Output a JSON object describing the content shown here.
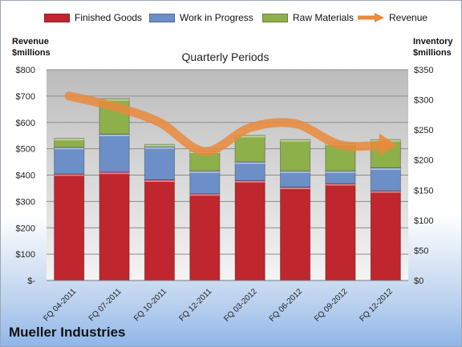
{
  "chart_data": {
    "type": "bar",
    "title": "Quarterly Periods",
    "company": "Mueller Industries",
    "categories": [
      "FQ 04-2011",
      "FQ 07-2011",
      "FQ 10-2011",
      "FQ 12-2011",
      "FQ 03-2012",
      "FQ 06-2012",
      "FQ 09-2012",
      "FQ 12-2012"
    ],
    "stacked": true,
    "left_axis": {
      "label_lines": [
        "Revenue",
        "$millions"
      ],
      "ylim": [
        0,
        800
      ],
      "ticks": [
        "$-",
        "$100",
        "$200",
        "$300",
        "$400",
        "$500",
        "$600",
        "$700",
        "$800"
      ]
    },
    "right_axis": {
      "label_lines": [
        "Inventory",
        "$millions"
      ],
      "ylim": [
        0,
        350
      ],
      "ticks": [
        "$0",
        "$50",
        "$100",
        "$150",
        "$200",
        "$250",
        "$300",
        "$350"
      ]
    },
    "series": [
      {
        "name": "Finished Goods",
        "axis": "right",
        "color": "#c0262d",
        "values": [
          177,
          180,
          167,
          144,
          166,
          155,
          161,
          149
        ]
      },
      {
        "name": "Work in Progress",
        "axis": "right",
        "color": "#6d8fc8",
        "values": [
          44,
          63,
          55,
          38,
          31,
          27,
          21,
          38
        ]
      },
      {
        "name": "Raw Materials",
        "axis": "right",
        "color": "#8db04b",
        "values": [
          15,
          59,
          4,
          33,
          44,
          52,
          46,
          47
        ]
      }
    ],
    "line_series": {
      "name": "Revenue",
      "axis": "left",
      "color": "#e98a3c",
      "values": [
        700,
        660,
        600,
        490,
        580,
        595,
        515,
        515
      ]
    },
    "grid": true,
    "legend_position": "top"
  }
}
